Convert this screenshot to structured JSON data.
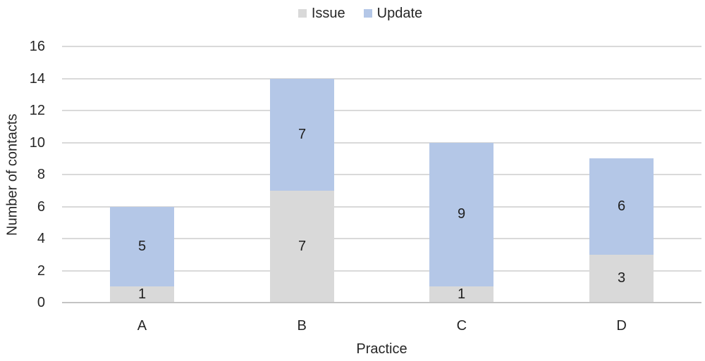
{
  "chart_data": {
    "type": "bar",
    "stacked": true,
    "categories": [
      "A",
      "B",
      "C",
      "D"
    ],
    "series": [
      {
        "name": "Issue",
        "color": "#d9d9d9",
        "values": [
          1,
          7,
          1,
          3
        ]
      },
      {
        "name": "Update",
        "color": "#b4c7e7",
        "values": [
          5,
          7,
          9,
          6
        ]
      }
    ],
    "xlabel": "Practice",
    "ylabel": "Number of contacts",
    "ylim": [
      0,
      16
    ],
    "ytick_step": 2,
    "y_ticks": [
      "0",
      "2",
      "4",
      "6",
      "8",
      "10",
      "12",
      "14",
      "16"
    ],
    "grid": true,
    "legend_position": "top-center",
    "data_labels": true,
    "colors": {
      "gridline": "#d9d9d9",
      "axis_line": "#c3c3c3",
      "text": "#262626",
      "label_text": "#1f1f1f"
    }
  }
}
